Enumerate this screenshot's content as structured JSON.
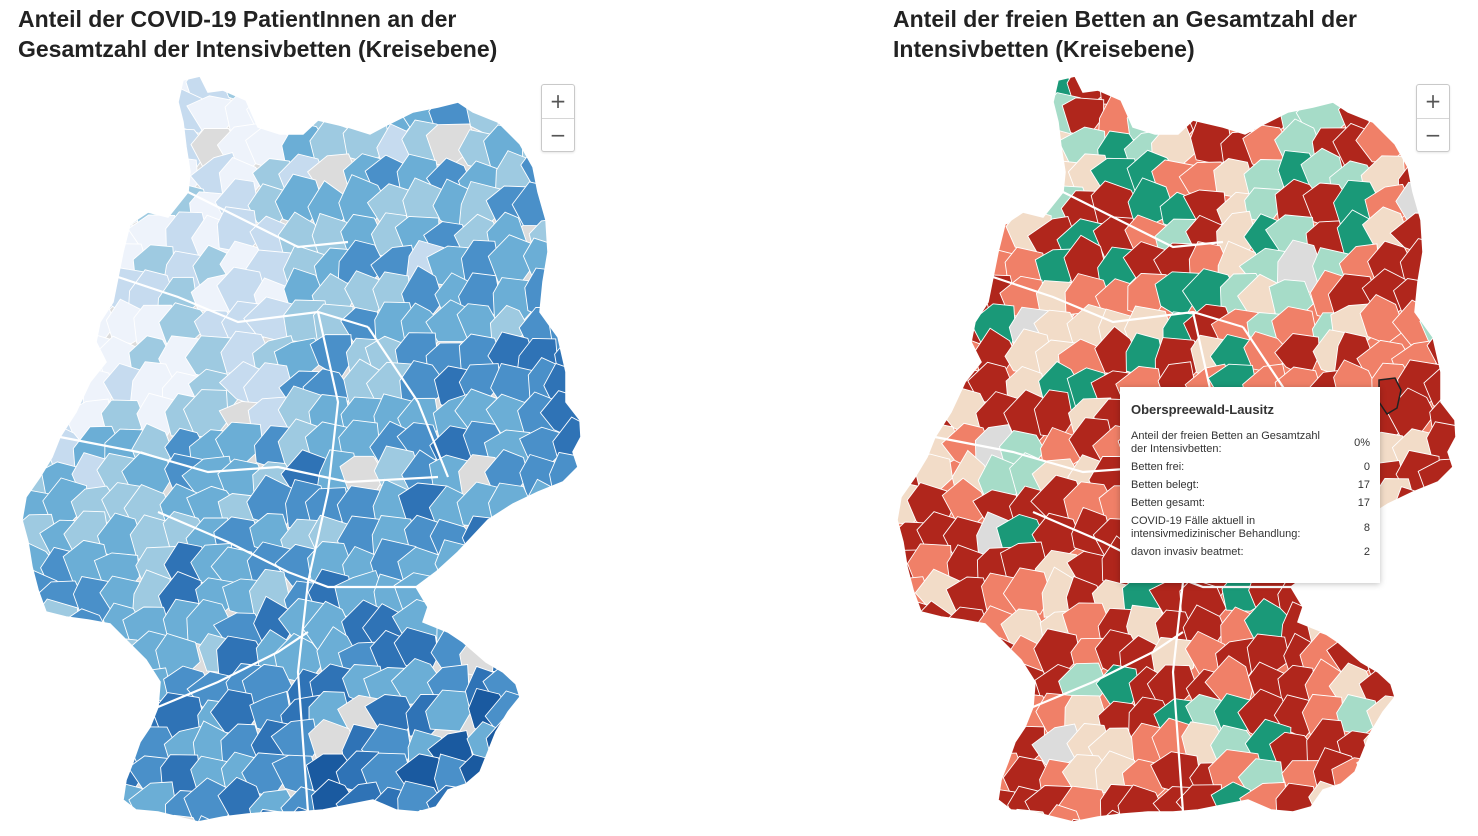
{
  "left_panel": {
    "title": "Anteil der COVID-19 PatientInnen an der Gesamtzahl der Intensivbetten (Kreisebene)",
    "zoom_in": "+",
    "zoom_out": "−",
    "palette": [
      "#eef3fb",
      "#c6dbef",
      "#9ecae1",
      "#6baed6",
      "#4a90c9",
      "#2f73b6",
      "#1a5aa0",
      "#0b4a8e",
      "#dcdcdc"
    ]
  },
  "right_panel": {
    "title": "Anteil der freien Betten an Gesamtzahl der Intensivbetten (Kreisebene)",
    "zoom_in": "+",
    "zoom_out": "−",
    "palette": [
      "#b0261c",
      "#f08068",
      "#f2dcc8",
      "#a6dcc8",
      "#1a9978",
      "#dcdcdc"
    ]
  },
  "tooltip": {
    "region": "Oberspreewald-Lausitz",
    "rows": [
      {
        "label": "Anteil der freien Betten an Gesamtzahl der Intensivbetten:",
        "value": "0%"
      },
      {
        "label": "Betten frei:",
        "value": "0"
      },
      {
        "label": "Betten belegt:",
        "value": "17"
      },
      {
        "label": "Betten gesamt:",
        "value": "17"
      },
      {
        "label": "COVID-19 Fälle aktuell in intensivmedizinischer Behandlung:",
        "value": "8"
      },
      {
        "label": "davon invasiv beatmet:",
        "value": "2"
      }
    ]
  }
}
